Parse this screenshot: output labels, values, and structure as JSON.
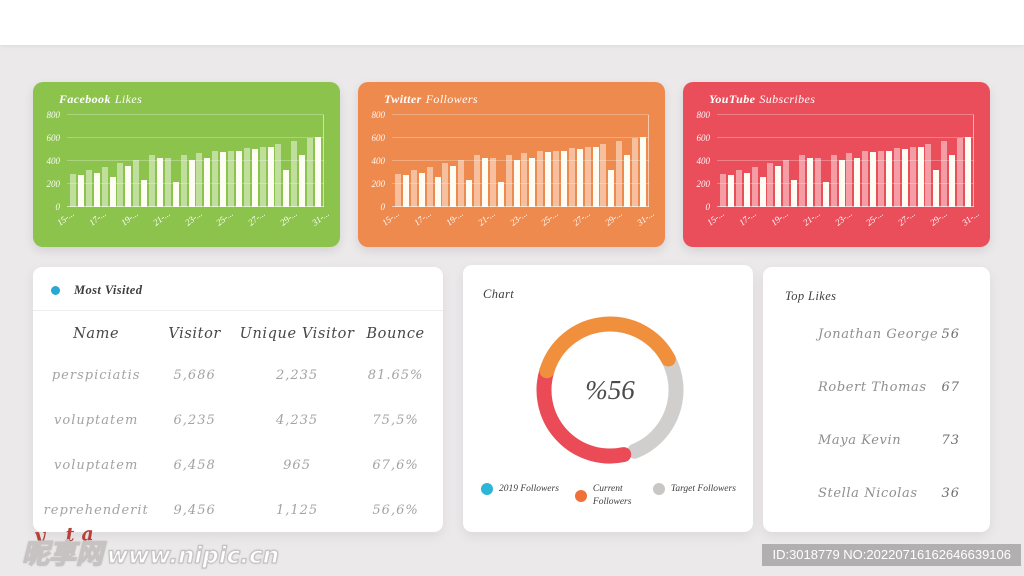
{
  "page": {
    "background": "#ECE9EB",
    "topbar_color": "#FFFFFF"
  },
  "social_cards": [
    {
      "title_primary": "Facebook",
      "title_secondary": "Likes",
      "bg": "#8CC34C"
    },
    {
      "title_primary": "Twitter",
      "title_secondary": "Followers",
      "bg": "#EE8A4E"
    },
    {
      "title_primary": "YouTube",
      "title_secondary": "Subscribes",
      "bg": "#EB4E5B"
    }
  ],
  "bar_colors": {
    "light": "rgba(255,255,255,0.45)",
    "solid": "#FDFDF3"
  },
  "most_visited": {
    "title": "Most Visited",
    "dot_color": "#29A8D4",
    "columns": [
      "Name",
      "Visitor",
      "Unique Visitor",
      "Bounce"
    ],
    "rows": [
      [
        "perspiciatis",
        "5,686",
        "2,235",
        "81.65%"
      ],
      [
        "voluptatem",
        "6,235",
        "4,235",
        "75,5%"
      ],
      [
        "voluptatem",
        "6,458",
        "965",
        "67,6%"
      ],
      [
        "reprehenderit",
        "9,456",
        "1,125",
        "56,6%"
      ]
    ]
  },
  "donut_card": {
    "title": "Chart",
    "center_label": "%56"
  },
  "top_likes": {
    "title": "Top Likes",
    "items": [
      {
        "name": "Jonathan George",
        "value": "56"
      },
      {
        "name": "Robert Thomas",
        "value": "67"
      },
      {
        "name": "Maya Kevin",
        "value": "73"
      },
      {
        "name": "Stella Nicolas",
        "value": "36"
      }
    ]
  },
  "watermark": {
    "script_text": "y ta",
    "site_name": "昵享网",
    "site_url": "www.nipic.cn",
    "badge_text": "ID:3018779 NO:20220716162646639106",
    "badge_bg": "rgba(171,168,169,0.9)"
  },
  "chart_data": [
    {
      "type": "bar",
      "title": "Facebook Likes",
      "categories": [
        "15-...",
        "17-...",
        "19-...",
        "21-...",
        "23-...",
        "25-...",
        "27-...",
        "29-...",
        "31-..."
      ],
      "series": [
        {
          "name": "light",
          "values": [
            290,
            320,
            350,
            380,
            410,
            455,
            430,
            455,
            470,
            485,
            490,
            510,
            525,
            550,
            575,
            600
          ]
        },
        {
          "name": "solid",
          "values": [
            275,
            300,
            265,
            360,
            235,
            430,
            220,
            410,
            430,
            480,
            485,
            505,
            520,
            320,
            455,
            605
          ]
        }
      ],
      "ylim": [
        0,
        800
      ],
      "yticks": [
        0,
        200,
        400,
        600,
        800
      ],
      "grid": true
    },
    {
      "type": "bar",
      "title": "Twitter Followers",
      "categories": [
        "15-...",
        "17-...",
        "19-...",
        "21-...",
        "23-...",
        "25-...",
        "27-...",
        "29-...",
        "31-..."
      ],
      "series": [
        {
          "name": "light",
          "values": [
            290,
            320,
            350,
            380,
            410,
            455,
            430,
            455,
            470,
            485,
            490,
            510,
            525,
            550,
            575,
            600
          ]
        },
        {
          "name": "solid",
          "values": [
            275,
            300,
            265,
            360,
            235,
            430,
            220,
            410,
            430,
            480,
            485,
            505,
            520,
            320,
            455,
            605
          ]
        }
      ],
      "ylim": [
        0,
        800
      ],
      "yticks": [
        0,
        200,
        400,
        600,
        800
      ],
      "grid": true
    },
    {
      "type": "bar",
      "title": "YouTube Subscribes",
      "categories": [
        "15-...",
        "17-...",
        "19-...",
        "21-...",
        "23-...",
        "25-...",
        "27-...",
        "29-...",
        "31-..."
      ],
      "series": [
        {
          "name": "light",
          "values": [
            290,
            320,
            350,
            380,
            410,
            455,
            430,
            455,
            470,
            485,
            490,
            510,
            525,
            550,
            575,
            600
          ]
        },
        {
          "name": "solid",
          "values": [
            275,
            300,
            265,
            360,
            235,
            430,
            220,
            410,
            430,
            480,
            485,
            505,
            520,
            320,
            455,
            605
          ]
        }
      ],
      "ylim": [
        0,
        800
      ],
      "yticks": [
        0,
        200,
        400,
        600,
        800
      ],
      "grid": true
    },
    {
      "type": "donut",
      "title": "Chart",
      "center_label": "%56",
      "segments": [
        {
          "color": "#D1CECE",
          "start_deg": 62,
          "end_deg": 158
        },
        {
          "color": "#EB4B57",
          "start_deg": 168,
          "end_deg": 287
        },
        {
          "color": "#F1903C",
          "start_deg": 287,
          "end_deg": 422
        }
      ],
      "legend": [
        {
          "label": "2019 Followers",
          "color": "#2CB5D6"
        },
        {
          "label": "Current Followers",
          "color": "#F0703A"
        },
        {
          "label": "Target Followers",
          "color": "#C9C6C6"
        }
      ],
      "legend_position": "bottom"
    }
  ]
}
